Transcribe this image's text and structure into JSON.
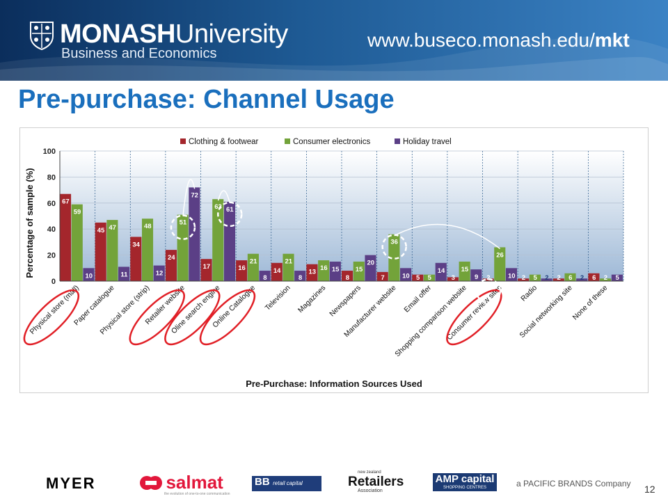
{
  "header": {
    "brand_bold": "MONASH",
    "brand_rest": "University",
    "faculty": "Business and Economics",
    "url_prefix": "www.buseco.monash.edu/",
    "url_bold": "mkt"
  },
  "slide": {
    "title": "Pre-purchase: Channel Usage",
    "page_number": "12"
  },
  "chart_data": {
    "type": "bar",
    "title": "",
    "xlabel": "Pre-Purchase: Information Sources Used",
    "ylabel": "Percentage of sample (%)",
    "ylim": [
      0,
      100
    ],
    "yticks": [
      "0",
      "20",
      "40",
      "60",
      "80",
      "100"
    ],
    "legend_position": "top",
    "categories": [
      "Physical store (mall)",
      "Paper catalogue",
      "Physical store (strip)",
      "Retailer website",
      "Oline search engine",
      "Online Catalogue",
      "Television",
      "Magazines",
      "Newspapers",
      "Manufacturer website",
      "Email offer",
      "Shopping comparison website",
      "Consumer review sites",
      "Radio",
      "Social networking site",
      "None of these"
    ],
    "series": [
      {
        "name": "Clothing & footwear",
        "color": "#a4262c",
        "values": [
          67,
          45,
          34,
          24,
          17,
          16,
          14,
          13,
          8,
          7,
          5,
          3,
          2,
          2,
          2,
          6
        ]
      },
      {
        "name": "Consumer electronics",
        "color": "#73a33a",
        "values": [
          59,
          47,
          48,
          51,
          63,
          21,
          21,
          16,
          15,
          36,
          5,
          15,
          26,
          5,
          6,
          2
        ]
      },
      {
        "name": "Holiday travel",
        "color": "#5b3f86",
        "values": [
          10,
          11,
          12,
          72,
          61,
          8,
          8,
          15,
          20,
          10,
          14,
          9,
          10,
          2,
          2,
          5
        ]
      }
    ],
    "circled_categories": [
      0,
      3,
      4,
      5,
      12
    ],
    "grid": true
  },
  "footer": {
    "logos": [
      {
        "name": "myer",
        "text": "MYER",
        "color": "#000000"
      },
      {
        "name": "salmat",
        "text": "salmat",
        "tagline": "the evolution of one-to-one communication",
        "color": "#e2173b"
      },
      {
        "name": "bb-retail-capital",
        "text": "BB",
        "tagline": "retail capital",
        "color": "#1f3d7a"
      },
      {
        "name": "retailers-association",
        "text": "Retailers",
        "prefix": "new zealand",
        "suffix": "Association",
        "color": "#111111"
      },
      {
        "name": "amp-capital",
        "text": "AMP capital",
        "tagline": "SHOPPING CENTRES",
        "color": "#1b3a73"
      },
      {
        "name": "pacific-brands",
        "text": "a PACIFIC BRANDS Company",
        "color": "#555555"
      }
    ]
  },
  "colors": {
    "title_blue": "#1a6fbd",
    "banner_dark": "#0b2e5c",
    "annotation_red": "#e11f26"
  }
}
